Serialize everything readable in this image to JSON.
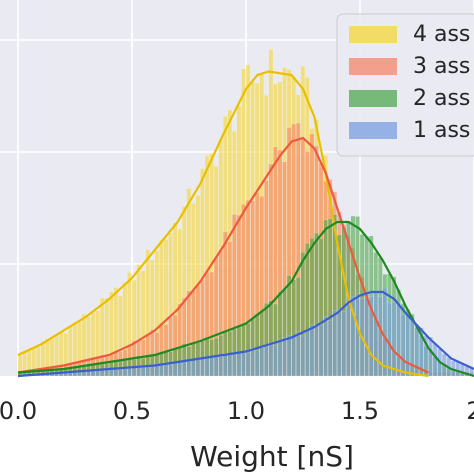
{
  "chart_data": {
    "type": "histogram",
    "title": "",
    "xlabel": "Weight [nS]",
    "ylabel": "",
    "xlim": [
      0.0,
      2.0
    ],
    "xticks": [
      "0.0",
      "0.5",
      "1.0",
      "1.5",
      "2"
    ],
    "grid": true,
    "background": "#eaeaf2",
    "legend": {
      "placement": "top-right",
      "entries": [
        "4 ass",
        "3 ass",
        "2 ass",
        "1 ass"
      ]
    },
    "series": [
      {
        "name": "4 ass",
        "color": "#f5d63a",
        "line_color": "#e8c000",
        "kde": [
          [
            0.0,
            0.06
          ],
          [
            0.1,
            0.09
          ],
          [
            0.2,
            0.13
          ],
          [
            0.3,
            0.17
          ],
          [
            0.4,
            0.22
          ],
          [
            0.5,
            0.28
          ],
          [
            0.6,
            0.36
          ],
          [
            0.7,
            0.44
          ],
          [
            0.8,
            0.55
          ],
          [
            0.9,
            0.69
          ],
          [
            1.0,
            0.82
          ],
          [
            1.05,
            0.86
          ],
          [
            1.1,
            0.87
          ],
          [
            1.2,
            0.86
          ],
          [
            1.25,
            0.82
          ],
          [
            1.3,
            0.74
          ],
          [
            1.35,
            0.58
          ],
          [
            1.4,
            0.38
          ],
          [
            1.45,
            0.22
          ],
          [
            1.5,
            0.12
          ],
          [
            1.55,
            0.06
          ],
          [
            1.6,
            0.03
          ],
          [
            1.7,
            0.01
          ],
          [
            1.8,
            0.0
          ]
        ]
      },
      {
        "name": "3 ass",
        "color": "#f4866a",
        "line_color": "#ee5a3c",
        "kde": [
          [
            0.0,
            0.01
          ],
          [
            0.2,
            0.03
          ],
          [
            0.4,
            0.06
          ],
          [
            0.5,
            0.09
          ],
          [
            0.6,
            0.13
          ],
          [
            0.7,
            0.19
          ],
          [
            0.8,
            0.27
          ],
          [
            0.9,
            0.37
          ],
          [
            1.0,
            0.48
          ],
          [
            1.1,
            0.58
          ],
          [
            1.15,
            0.63
          ],
          [
            1.2,
            0.67
          ],
          [
            1.25,
            0.68
          ],
          [
            1.3,
            0.65
          ],
          [
            1.35,
            0.58
          ],
          [
            1.4,
            0.48
          ],
          [
            1.45,
            0.38
          ],
          [
            1.5,
            0.28
          ],
          [
            1.55,
            0.19
          ],
          [
            1.6,
            0.12
          ],
          [
            1.65,
            0.07
          ],
          [
            1.7,
            0.04
          ],
          [
            1.8,
            0.01
          ]
        ]
      },
      {
        "name": "2 ass",
        "color": "#4fa84f",
        "line_color": "#1f8a1f",
        "kde": [
          [
            0.0,
            0.01
          ],
          [
            0.2,
            0.02
          ],
          [
            0.4,
            0.04
          ],
          [
            0.6,
            0.06
          ],
          [
            0.8,
            0.1
          ],
          [
            1.0,
            0.15
          ],
          [
            1.1,
            0.2
          ],
          [
            1.2,
            0.27
          ],
          [
            1.25,
            0.33
          ],
          [
            1.3,
            0.38
          ],
          [
            1.35,
            0.42
          ],
          [
            1.4,
            0.44
          ],
          [
            1.45,
            0.44
          ],
          [
            1.5,
            0.42
          ],
          [
            1.55,
            0.38
          ],
          [
            1.6,
            0.33
          ],
          [
            1.65,
            0.27
          ],
          [
            1.7,
            0.2
          ],
          [
            1.75,
            0.14
          ],
          [
            1.8,
            0.08
          ],
          [
            1.85,
            0.04
          ],
          [
            1.9,
            0.02
          ],
          [
            2.0,
            0.0
          ]
        ]
      },
      {
        "name": "1 ass",
        "color": "#7a9ee0",
        "line_color": "#3a5fd0",
        "kde": [
          [
            0.0,
            0.0
          ],
          [
            0.2,
            0.01
          ],
          [
            0.4,
            0.02
          ],
          [
            0.6,
            0.03
          ],
          [
            0.8,
            0.05
          ],
          [
            1.0,
            0.07
          ],
          [
            1.1,
            0.09
          ],
          [
            1.2,
            0.11
          ],
          [
            1.3,
            0.14
          ],
          [
            1.4,
            0.18
          ],
          [
            1.45,
            0.21
          ],
          [
            1.5,
            0.23
          ],
          [
            1.55,
            0.24
          ],
          [
            1.6,
            0.24
          ],
          [
            1.65,
            0.22
          ],
          [
            1.7,
            0.18
          ],
          [
            1.8,
            0.11
          ],
          [
            1.9,
            0.05
          ],
          [
            2.0,
            0.02
          ]
        ]
      }
    ]
  }
}
